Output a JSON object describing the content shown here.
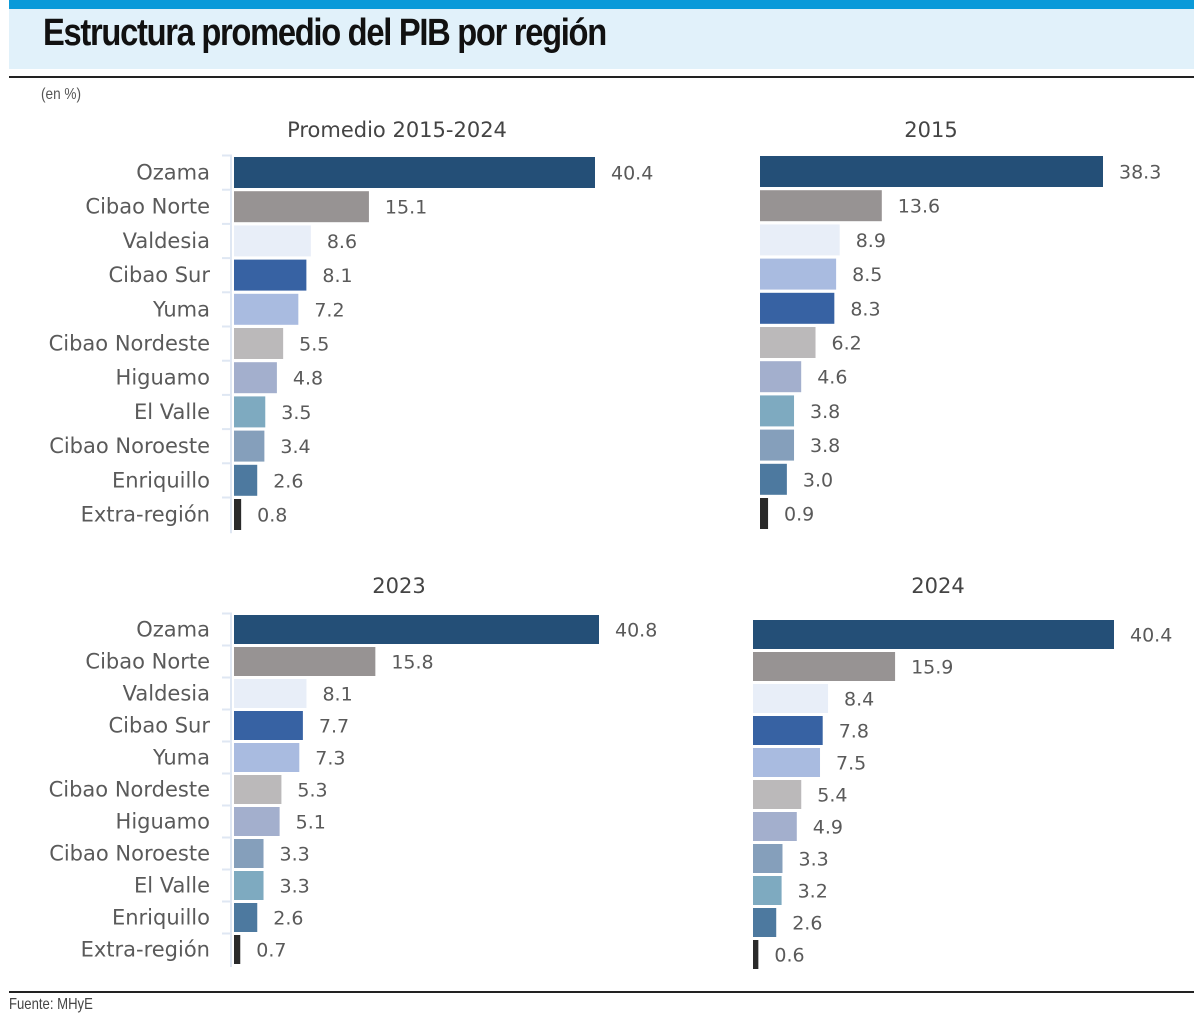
{
  "header": {
    "title": "Estructura promedio del PIB por región",
    "unit": "(en %)"
  },
  "footer": {
    "source": "Fuente: MHyE"
  },
  "colors": {
    "accent_bar": "#0a9ad9",
    "title_background": "#e1f1fa",
    "regions": {
      "Ozama": "#244f77",
      "Cibao Norte": "#979393",
      "Valdesia": "#e8eef8",
      "Cibao Sur": "#3762a3",
      "Yuma": "#a9bbe0",
      "Cibao Nordeste": "#bbb9ba",
      "Higuamo": "#a3afcd",
      "El Valle": "#7eaac0",
      "Cibao Noroeste": "#859fbb",
      "Enriquillo": "#4d799f",
      "Extra-región": "#2a2a2a"
    }
  },
  "chart_data": [
    {
      "type": "bar",
      "orientation": "horizontal",
      "title": "Promedio 2015-2024",
      "show_category_labels": true,
      "categories": [
        "Ozama",
        "Cibao Norte",
        "Valdesia",
        "Cibao Sur",
        "Yuma",
        "Cibao Nordeste",
        "Higuamo",
        "El Valle",
        "Cibao Noroeste",
        "Enriquillo",
        "Extra-región"
      ],
      "values": [
        40.4,
        15.1,
        8.6,
        8.1,
        7.2,
        5.5,
        4.8,
        3.5,
        3.4,
        2.6,
        0.8
      ],
      "value_labels": [
        "40.4",
        "15.1",
        "8.6",
        "8.1",
        "7.2",
        "5.5",
        "4.8",
        "3.5",
        "3.4",
        "2.6",
        "0.8"
      ],
      "xlabel": "",
      "ylabel": "",
      "xlim": [
        0,
        42
      ],
      "grid": false
    },
    {
      "type": "bar",
      "orientation": "horizontal",
      "title": "2015",
      "show_category_labels": false,
      "categories": [
        "Ozama",
        "Cibao Norte",
        "Valdesia",
        "Yuma",
        "Cibao Sur",
        "Cibao Nordeste",
        "Higuamo",
        "El Valle",
        "Cibao Noroeste",
        "Enriquillo",
        "Extra-región"
      ],
      "values": [
        38.3,
        13.6,
        8.9,
        8.5,
        8.3,
        6.2,
        4.6,
        3.8,
        3.8,
        3.0,
        0.9
      ],
      "value_labels": [
        "38.3",
        "13.6",
        "8.9",
        "8.5",
        "8.3",
        "6.2",
        "4.6",
        "3.8",
        "3.8",
        "3.0",
        "0.9"
      ],
      "xlabel": "",
      "ylabel": "",
      "xlim": [
        0,
        42
      ],
      "grid": false
    },
    {
      "type": "bar",
      "orientation": "horizontal",
      "title": "2023",
      "show_category_labels": true,
      "categories": [
        "Ozama",
        "Cibao Norte",
        "Valdesia",
        "Cibao Sur",
        "Yuma",
        "Cibao Nordeste",
        "Higuamo",
        "Cibao Noroeste",
        "El Valle",
        "Enriquillo",
        "Extra-región"
      ],
      "values": [
        40.8,
        15.8,
        8.1,
        7.7,
        7.3,
        5.3,
        5.1,
        3.3,
        3.3,
        2.6,
        0.7
      ],
      "value_labels": [
        "40.8",
        "15.8",
        "8.1",
        "7.7",
        "7.3",
        "5.3",
        "5.1",
        "3.3",
        "3.3",
        "2.6",
        "0.7"
      ],
      "xlabel": "",
      "ylabel": "",
      "xlim": [
        0,
        42
      ],
      "grid": false
    },
    {
      "type": "bar",
      "orientation": "horizontal",
      "title": "2024",
      "show_category_labels": false,
      "categories": [
        "Ozama",
        "Cibao Norte",
        "Valdesia",
        "Cibao Sur",
        "Yuma",
        "Cibao Nordeste",
        "Higuamo",
        "Cibao Noroeste",
        "El Valle",
        "Enriquillo",
        "Extra-región"
      ],
      "values": [
        40.4,
        15.9,
        8.4,
        7.8,
        7.5,
        5.4,
        4.9,
        3.3,
        3.2,
        2.6,
        0.6
      ],
      "value_labels": [
        "40.4",
        "15.9",
        "8.4",
        "7.8",
        "7.5",
        "5.4",
        "4.9",
        "3.3",
        "3.2",
        "2.6",
        "0.6"
      ],
      "xlabel": "",
      "ylabel": "",
      "xlim": [
        0,
        42
      ],
      "grid": false
    }
  ]
}
